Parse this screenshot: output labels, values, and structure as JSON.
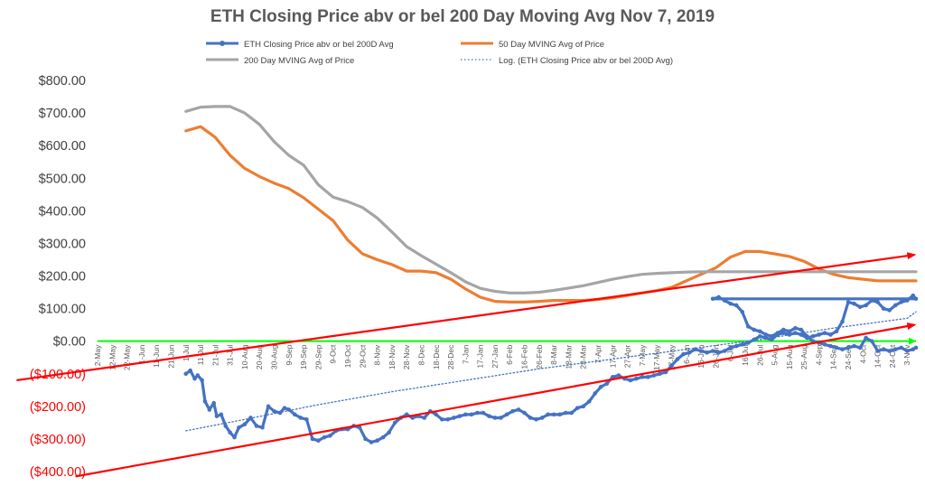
{
  "chart_data": {
    "type": "line",
    "title": "ETH Closing  Price abv or bel 200 Day Moving Avg Nov 7, 2019",
    "ylim": [
      -400,
      800
    ],
    "y_ticks": [
      {
        "value": 800,
        "label": "$800.00"
      },
      {
        "value": 700,
        "label": "$700.00"
      },
      {
        "value": 600,
        "label": "$600.00"
      },
      {
        "value": 500,
        "label": "$500.00"
      },
      {
        "value": 400,
        "label": "$400.00"
      },
      {
        "value": 300,
        "label": "$300.00"
      },
      {
        "value": 200,
        "label": "$200.00"
      },
      {
        "value": 100,
        "label": "$100.00"
      },
      {
        "value": 0,
        "label": "$0.00"
      },
      {
        "value": -100,
        "label": "($100.00)"
      },
      {
        "value": -200,
        "label": "($200.00)"
      },
      {
        "value": -300,
        "label": "($300.00)"
      },
      {
        "value": -400,
        "label": "($400.00)"
      }
    ],
    "x_labels": [
      "2-May",
      "12-May",
      "22-May",
      "1-Jun",
      "11-Jun",
      "21-Jun",
      "1-Jul",
      "11-Jul",
      "21-Jul",
      "31-Jul",
      "10-Aug",
      "20-Aug",
      "30-Aug",
      "9-Sep",
      "19-Sep",
      "29-Sep",
      "9-Oct",
      "19-Oct",
      "29-Oct",
      "8-Nov",
      "18-Nov",
      "28-Nov",
      "8-Dec",
      "18-Dec",
      "28-Dec",
      "7-Jan",
      "17-Jan",
      "27-Jan",
      "6-Feb",
      "16-Feb",
      "26-Feb",
      "8-Mar",
      "18-Mar",
      "28-Mar",
      "7-Apr",
      "17-Apr",
      "27-Apr",
      "7-May",
      "17-May",
      "27-May",
      "6-Jun",
      "16-Jun",
      "26-Jun",
      "6-Jul",
      "16-Jul",
      "26-Jul",
      "5-Aug",
      "15-Aug",
      "25-Aug",
      "4-Sep",
      "14-Sep",
      "24-Sep",
      "4-Oct",
      "14-Oct",
      "24-Oct",
      "3-Nov"
    ],
    "x_index_range": [
      0,
      55.6
    ],
    "series": [
      {
        "name": "ETH Closing  Price abv or bel 200D Avg",
        "color": "#4472c4",
        "marker": true,
        "points": [
          [
            6,
            -100
          ],
          [
            6.3,
            -90
          ],
          [
            6.6,
            -115
          ],
          [
            6.8,
            -105
          ],
          [
            7.1,
            -120
          ],
          [
            7.3,
            -185
          ],
          [
            7.6,
            -210
          ],
          [
            7.9,
            -190
          ],
          [
            8.1,
            -230
          ],
          [
            8.4,
            -225
          ],
          [
            8.7,
            -260
          ],
          [
            9,
            -280
          ],
          [
            9.3,
            -295
          ],
          [
            9.6,
            -265
          ],
          [
            10,
            -255
          ],
          [
            10.4,
            -235
          ],
          [
            10.8,
            -260
          ],
          [
            11.2,
            -265
          ],
          [
            11.6,
            -200
          ],
          [
            12,
            -215
          ],
          [
            12.4,
            -220
          ],
          [
            12.7,
            -205
          ],
          [
            13,
            -210
          ],
          [
            13.4,
            -225
          ],
          [
            13.8,
            -235
          ],
          [
            14.2,
            -240
          ],
          [
            14.6,
            -300
          ],
          [
            15,
            -305
          ],
          [
            15.4,
            -295
          ],
          [
            15.8,
            -290
          ],
          [
            16.2,
            -275
          ],
          [
            16.6,
            -270
          ],
          [
            17,
            -270
          ],
          [
            17.4,
            -260
          ],
          [
            17.8,
            -265
          ],
          [
            18.2,
            -300
          ],
          [
            18.6,
            -310
          ],
          [
            19,
            -305
          ],
          [
            19.4,
            -295
          ],
          [
            19.8,
            -280
          ],
          [
            20.2,
            -250
          ],
          [
            20.6,
            -235
          ],
          [
            21,
            -225
          ],
          [
            21.4,
            -235
          ],
          [
            21.8,
            -230
          ],
          [
            22.2,
            -235
          ],
          [
            22.6,
            -215
          ],
          [
            23,
            -225
          ],
          [
            23.4,
            -240
          ],
          [
            23.8,
            -240
          ],
          [
            24.2,
            -235
          ],
          [
            24.6,
            -230
          ],
          [
            25,
            -225
          ],
          [
            25.4,
            -225
          ],
          [
            25.8,
            -220
          ],
          [
            26.2,
            -220
          ],
          [
            26.6,
            -230
          ],
          [
            27,
            -235
          ],
          [
            27.4,
            -235
          ],
          [
            27.8,
            -225
          ],
          [
            28.2,
            -215
          ],
          [
            28.6,
            -210
          ],
          [
            29,
            -220
          ],
          [
            29.4,
            -235
          ],
          [
            29.8,
            -240
          ],
          [
            30.2,
            -235
          ],
          [
            30.6,
            -225
          ],
          [
            31,
            -225
          ],
          [
            31.4,
            -225
          ],
          [
            31.8,
            -220
          ],
          [
            32.2,
            -220
          ],
          [
            32.6,
            -205
          ],
          [
            33,
            -200
          ],
          [
            33.4,
            -185
          ],
          [
            33.8,
            -160
          ],
          [
            34.2,
            -140
          ],
          [
            34.6,
            -130
          ],
          [
            35,
            -110
          ],
          [
            35.4,
            -105
          ],
          [
            35.8,
            -115
          ],
          [
            36.2,
            -120
          ],
          [
            36.6,
            -115
          ],
          [
            37,
            -110
          ],
          [
            37.4,
            -110
          ],
          [
            37.8,
            -105
          ],
          [
            38.2,
            -100
          ],
          [
            38.6,
            -95
          ],
          [
            39,
            -75
          ],
          [
            39.4,
            -55
          ],
          [
            39.8,
            -40
          ],
          [
            40.2,
            -35
          ],
          [
            40.6,
            -25
          ],
          [
            41,
            -30
          ],
          [
            41.4,
            -35
          ],
          [
            41.8,
            -30
          ],
          [
            42.2,
            -35
          ],
          [
            42.6,
            -30
          ],
          [
            43,
            -20
          ],
          [
            43.4,
            -15
          ],
          [
            43.8,
            -10
          ],
          [
            44.2,
            -5
          ],
          [
            44.6,
            5
          ],
          [
            45,
            15
          ],
          [
            45.4,
            10
          ],
          [
            45.8,
            5
          ],
          [
            46.2,
            20
          ],
          [
            46.6,
            25
          ],
          [
            47,
            20
          ],
          [
            47.4,
            25
          ],
          [
            47.8,
            20
          ],
          [
            48.2,
            10
          ],
          [
            48.6,
            15
          ],
          [
            49,
            20
          ],
          [
            49.4,
            25
          ],
          [
            49.8,
            20
          ],
          [
            50.2,
            30
          ],
          [
            50.6,
            60
          ],
          [
            51,
            120
          ],
          [
            51.4,
            115
          ],
          [
            51.8,
            105
          ],
          [
            52.2,
            110
          ],
          [
            52.6,
            125
          ],
          [
            53,
            120
          ],
          [
            53.4,
            100
          ],
          [
            53.8,
            95
          ],
          [
            54.2,
            110
          ],
          [
            54.6,
            120
          ],
          [
            55,
            125
          ],
          [
            55.4,
            140
          ],
          [
            55.6,
            130
          ],
          [
            41.8,
            130
          ],
          [
            42.2,
            135
          ],
          [
            42.6,
            125
          ],
          [
            43,
            115
          ],
          [
            43.4,
            110
          ],
          [
            43.8,
            90
          ],
          [
            44.2,
            45
          ],
          [
            44.6,
            35
          ],
          [
            45,
            30
          ],
          [
            45.4,
            20
          ],
          [
            45.8,
            15
          ],
          [
            46.2,
            25
          ],
          [
            46.6,
            35
          ],
          [
            47,
            30
          ],
          [
            47.4,
            40
          ],
          [
            47.8,
            35
          ],
          [
            48.2,
            15
          ],
          [
            48.6,
            0
          ],
          [
            49,
            -5
          ],
          [
            49.4,
            -10
          ],
          [
            49.8,
            -15
          ],
          [
            50.2,
            -20
          ],
          [
            50.6,
            -25
          ],
          [
            51,
            -20
          ],
          [
            51.4,
            -15
          ],
          [
            51.8,
            -20
          ],
          [
            52.2,
            10
          ],
          [
            52.6,
            0
          ],
          [
            53,
            -30
          ],
          [
            53.4,
            -25
          ],
          [
            53.8,
            -30
          ],
          [
            54.2,
            -25
          ],
          [
            54.6,
            -20
          ],
          [
            55,
            -30
          ],
          [
            55.4,
            -25
          ],
          [
            55.6,
            -20
          ]
        ]
      },
      {
        "name": "50 Day MVING Avg of  Price",
        "color": "#ed7d31",
        "marker": false,
        "points": [
          [
            6,
            645
          ],
          [
            7,
            658
          ],
          [
            8,
            625
          ],
          [
            9,
            570
          ],
          [
            10,
            530
          ],
          [
            11,
            505
          ],
          [
            12,
            485
          ],
          [
            13,
            468
          ],
          [
            14,
            440
          ],
          [
            15,
            405
          ],
          [
            16,
            370
          ],
          [
            17,
            310
          ],
          [
            18,
            268
          ],
          [
            19,
            250
          ],
          [
            20,
            235
          ],
          [
            21,
            215
          ],
          [
            22,
            215
          ],
          [
            23,
            210
          ],
          [
            24,
            190
          ],
          [
            25,
            160
          ],
          [
            26,
            135
          ],
          [
            27,
            122
          ],
          [
            28,
            120
          ],
          [
            29,
            120
          ],
          [
            30,
            122
          ],
          [
            31,
            125
          ],
          [
            32,
            125
          ],
          [
            33,
            125
          ],
          [
            34,
            128
          ],
          [
            35,
            133
          ],
          [
            36,
            140
          ],
          [
            37,
            148
          ],
          [
            38,
            155
          ],
          [
            39,
            165
          ],
          [
            40,
            185
          ],
          [
            41,
            205
          ],
          [
            42,
            225
          ],
          [
            43,
            258
          ],
          [
            44,
            275
          ],
          [
            45,
            275
          ],
          [
            46,
            268
          ],
          [
            47,
            260
          ],
          [
            48,
            245
          ],
          [
            49,
            222
          ],
          [
            50,
            205
          ],
          [
            51,
            195
          ],
          [
            52,
            190
          ],
          [
            53,
            185
          ],
          [
            54,
            185
          ],
          [
            55,
            185
          ],
          [
            55.6,
            185
          ]
        ]
      },
      {
        "name": "200 Day MVING Avg of  Price",
        "color": "#a5a5a5",
        "marker": false,
        "points": [
          [
            6,
            705
          ],
          [
            7,
            718
          ],
          [
            8,
            720
          ],
          [
            9,
            720
          ],
          [
            10,
            700
          ],
          [
            11,
            665
          ],
          [
            12,
            612
          ],
          [
            13,
            570
          ],
          [
            14,
            540
          ],
          [
            15,
            480
          ],
          [
            16,
            442
          ],
          [
            17,
            428
          ],
          [
            18,
            410
          ],
          [
            19,
            378
          ],
          [
            20,
            335
          ],
          [
            21,
            290
          ],
          [
            22,
            262
          ],
          [
            23,
            236
          ],
          [
            24,
            210
          ],
          [
            25,
            182
          ],
          [
            26,
            162
          ],
          [
            27,
            153
          ],
          [
            28,
            148
          ],
          [
            29,
            148
          ],
          [
            30,
            150
          ],
          [
            31,
            156
          ],
          [
            32,
            163
          ],
          [
            33,
            170
          ],
          [
            34,
            180
          ],
          [
            35,
            190
          ],
          [
            36,
            198
          ],
          [
            37,
            205
          ],
          [
            38,
            208
          ],
          [
            39,
            210
          ],
          [
            40,
            212
          ],
          [
            41,
            213
          ],
          [
            42,
            213
          ],
          [
            43,
            213
          ],
          [
            44,
            213
          ],
          [
            45,
            213
          ],
          [
            46,
            213
          ],
          [
            47,
            213
          ],
          [
            48,
            213
          ],
          [
            49,
            213
          ],
          [
            50,
            213
          ],
          [
            51,
            213
          ],
          [
            52,
            213
          ],
          [
            53,
            213
          ],
          [
            54,
            213
          ],
          [
            55,
            213
          ],
          [
            55.6,
            213
          ]
        ]
      },
      {
        "name": "Log. (ETH Closing  Price abv or bel 200D Avg)",
        "color": "#4472c4",
        "marker": false,
        "dotted": true,
        "points": [
          [
            6,
            -275
          ],
          [
            10,
            -240
          ],
          [
            15,
            -195
          ],
          [
            20,
            -155
          ],
          [
            25,
            -120
          ],
          [
            30,
            -85
          ],
          [
            35,
            -55
          ],
          [
            40,
            -25
          ],
          [
            45,
            5
          ],
          [
            50,
            40
          ],
          [
            55,
            70
          ],
          [
            55.6,
            90
          ]
        ]
      }
    ],
    "zero_line_color": "#00ff00",
    "trend_lines": [
      {
        "color": "#ff0000",
        "from": [
          -5.5,
          -120
        ],
        "to": [
          55.5,
          265
        ],
        "arrow": "end"
      },
      {
        "color": "#ff0000",
        "from": [
          -1.5,
          -415
        ],
        "to": [
          55.5,
          50
        ],
        "arrow": "end"
      }
    ]
  }
}
